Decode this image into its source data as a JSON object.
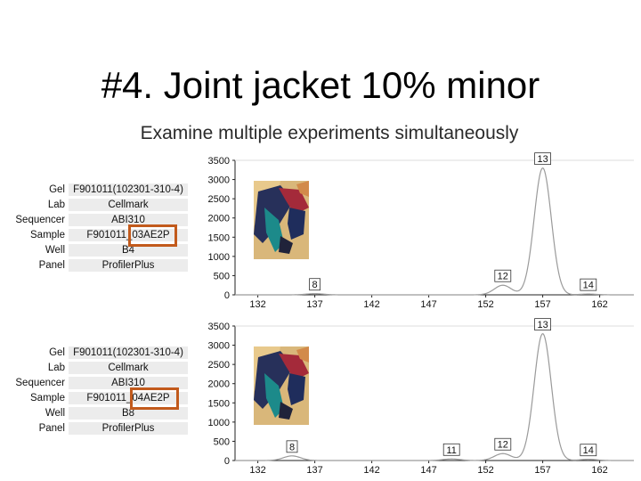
{
  "title": "#4. Joint jacket 10% minor",
  "subtitle": "Examine multiple experiments simultaneously",
  "meta_labels": [
    "Gel",
    "Lab",
    "Sequencer",
    "Sample",
    "Well",
    "Panel"
  ],
  "panels": [
    {
      "gel": "F901011(102301-310-4)",
      "lab": "Cellmark",
      "sequencer": "ABI310",
      "sample": "F901011_03AE2P",
      "well": "B4",
      "panel": "ProfilerPlus"
    },
    {
      "gel": "F901011(102301-310-4)",
      "lab": "Cellmark",
      "sequencer": "ABI310",
      "sample": "F901011_04AE2P",
      "well": "B8",
      "panel": "ProfilerPlus"
    }
  ],
  "colors": {
    "highlight": "#c25a1c",
    "trace": "#9a9a9a",
    "label_bg": "#ececec"
  },
  "chart_data": [
    {
      "type": "line",
      "title": "",
      "xlabel": "",
      "ylabel": "",
      "xlim": [
        130,
        165
      ],
      "ylim": [
        0,
        3500
      ],
      "xticks": [
        132,
        137,
        142,
        147,
        152,
        157,
        162
      ],
      "yticks": [
        0,
        500,
        1000,
        1500,
        2000,
        2500,
        3000,
        3500
      ],
      "peaks": [
        {
          "x": 137,
          "height": 30,
          "label": "8"
        },
        {
          "x": 153.5,
          "height": 250,
          "label": "12"
        },
        {
          "x": 157,
          "height": 3300,
          "label": "13"
        },
        {
          "x": 161,
          "height": 20,
          "label": "14"
        }
      ]
    },
    {
      "type": "line",
      "title": "",
      "xlabel": "",
      "ylabel": "",
      "xlim": [
        130,
        165
      ],
      "ylim": [
        0,
        3500
      ],
      "xticks": [
        132,
        137,
        142,
        147,
        152,
        157,
        162
      ],
      "yticks": [
        0,
        500,
        1000,
        1500,
        2000,
        2500,
        3000,
        3500
      ],
      "peaks": [
        {
          "x": 135,
          "height": 120,
          "label": "8"
        },
        {
          "x": 149,
          "height": 40,
          "label": "11"
        },
        {
          "x": 153.5,
          "height": 180,
          "label": "12"
        },
        {
          "x": 157,
          "height": 3300,
          "label": "13"
        },
        {
          "x": 161,
          "height": 30,
          "label": "14"
        }
      ]
    }
  ]
}
